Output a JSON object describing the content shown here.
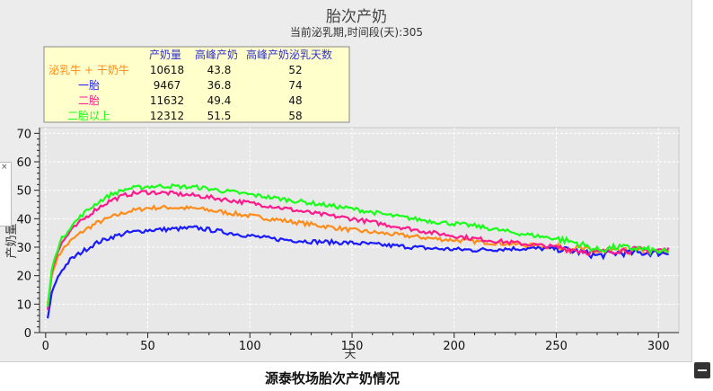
{
  "caption": "源泰牧场胎次产奶情况",
  "chart_data": {
    "type": "line",
    "title": "胎次产奶",
    "subtitle": "当前泌乳期,时间段(天):305",
    "xlabel": "天",
    "ylabel": "产奶量",
    "xlim": [
      -3,
      310
    ],
    "ylim": [
      0,
      72
    ],
    "xticks": [
      0,
      50,
      100,
      150,
      200,
      250,
      300
    ],
    "yticks": [
      0,
      10,
      20,
      30,
      40,
      50,
      60,
      70
    ],
    "grid": true,
    "legend_position": "top-left",
    "legend_headers": [
      "产奶量",
      "高峰产奶",
      "高峰产奶泌乳天数"
    ],
    "series": [
      {
        "name": "泌乳牛 + 干奶牛",
        "color": "#ff8c1a",
        "total": "10618",
        "peak": "43.8",
        "peak_day": "52",
        "x": [
          1,
          3,
          5,
          8,
          12,
          18,
          25,
          32,
          40,
          50,
          60,
          75,
          90,
          110,
          130,
          150,
          170,
          190,
          210,
          230,
          250,
          260,
          270,
          280,
          290,
          300,
          305
        ],
        "y": [
          10,
          20,
          25,
          29,
          32,
          35.5,
          38.5,
          40.5,
          42.5,
          43.8,
          44,
          43.5,
          42,
          40,
          38,
          36,
          34.5,
          33,
          32,
          31,
          30,
          29.5,
          28.5,
          28.5,
          28.5,
          28,
          28
        ]
      },
      {
        "name": "一胎",
        "color": "#1a1aff",
        "total": "9467",
        "peak": "36.8",
        "peak_day": "74",
        "x": [
          1,
          3,
          5,
          8,
          12,
          18,
          25,
          32,
          40,
          50,
          60,
          74,
          90,
          110,
          130,
          150,
          170,
          190,
          210,
          230,
          250,
          260,
          270,
          280,
          290,
          300,
          305
        ],
        "y": [
          5,
          14,
          18,
          22,
          25.5,
          28.5,
          31.5,
          33.5,
          35,
          36,
          36.3,
          36.8,
          35,
          33,
          32,
          31.5,
          30.5,
          29.5,
          29,
          29.5,
          29.5,
          28.5,
          27,
          28,
          28,
          28,
          28
        ]
      },
      {
        "name": "二胎",
        "color": "#ff1a8c",
        "total": "11632",
        "peak": "49.4",
        "peak_day": "48",
        "x": [
          1,
          3,
          5,
          8,
          12,
          18,
          25,
          32,
          40,
          48,
          60,
          75,
          90,
          110,
          130,
          150,
          170,
          190,
          210,
          230,
          250,
          260,
          270,
          280,
          290,
          300,
          305
        ],
        "y": [
          8,
          21,
          27,
          31.5,
          35.5,
          39.5,
          43.5,
          46.5,
          48.5,
          49.4,
          49,
          48,
          46.5,
          44.5,
          42,
          40,
          37.5,
          35,
          33,
          31.5,
          30,
          29,
          28,
          29,
          29,
          29,
          29
        ]
      },
      {
        "name": "二胎以上",
        "color": "#1aff1a",
        "total": "12312",
        "peak": "51.5",
        "peak_day": "58",
        "x": [
          1,
          3,
          5,
          8,
          12,
          18,
          25,
          32,
          40,
          50,
          58,
          75,
          90,
          110,
          130,
          150,
          170,
          190,
          210,
          230,
          250,
          260,
          270,
          280,
          290,
          300,
          305
        ],
        "y": [
          9,
          22,
          28,
          33,
          37,
          41.5,
          45.5,
          48.5,
          50.5,
          51.3,
          51.5,
          51,
          49.5,
          47.5,
          45.5,
          43.5,
          41,
          39,
          37.5,
          35,
          33,
          31.5,
          29,
          30,
          29.5,
          28.5,
          28
        ]
      }
    ]
  }
}
